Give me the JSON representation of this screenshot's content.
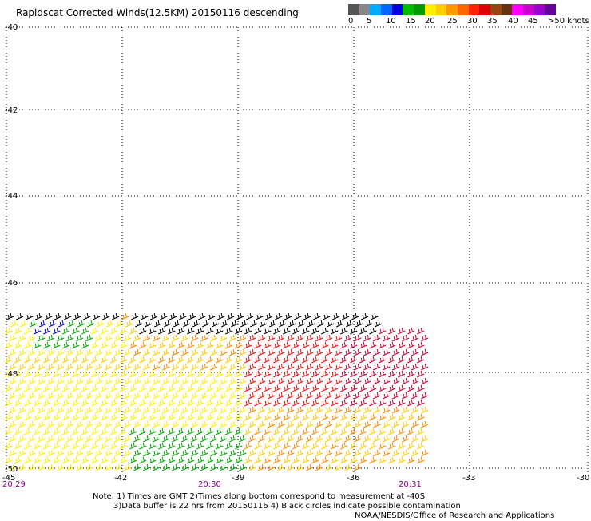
{
  "title": "Rapidscat Corrected Winds(12.5KM) 20150116 descending",
  "colorbar": {
    "colors": [
      "#555555",
      "#888888",
      "#00aaff",
      "#0066ff",
      "#0000dd",
      "#00bb00",
      "#009900",
      "#ffee00",
      "#ffcc00",
      "#ff9900",
      "#ff6600",
      "#ff2200",
      "#dd0000",
      "#994411",
      "#663311",
      "#ff00ff",
      "#cc00cc",
      "#9900cc",
      "#660099"
    ],
    "labels": [
      "0",
      "5",
      "10",
      "15",
      "20",
      "25",
      "30",
      "35",
      "40",
      "45",
      ">50 knots"
    ]
  },
  "axes": {
    "lon_ticks": [
      "-42",
      "-39",
      "-36",
      "-33",
      "-30"
    ],
    "lon_edge_label": "-45",
    "lat_ticks": [
      "-40",
      "-42",
      "-44",
      "-46",
      "-48",
      "-50"
    ]
  },
  "times": [
    "20:29",
    "20:30",
    "20:31"
  ],
  "notes": [
    "Note: 1) Times are GMT 2)Times along bottom correspond to measurement at -40S",
    "3)Data buffer is 22 hrs from 20150116 4) Black circles indicate possible contamination",
    "NOAA/NESDIS/Office of Research and Applications"
  ],
  "wind_colors": {
    "black": "#000000",
    "blue": "#0000cc",
    "green": "#00aa00",
    "yellow": "#ffee00",
    "gold": "#ffcc00",
    "orange": "#ff8800",
    "dark_orange": "#ee5500",
    "red": "#ee1111",
    "crimson": "#cc0033"
  }
}
